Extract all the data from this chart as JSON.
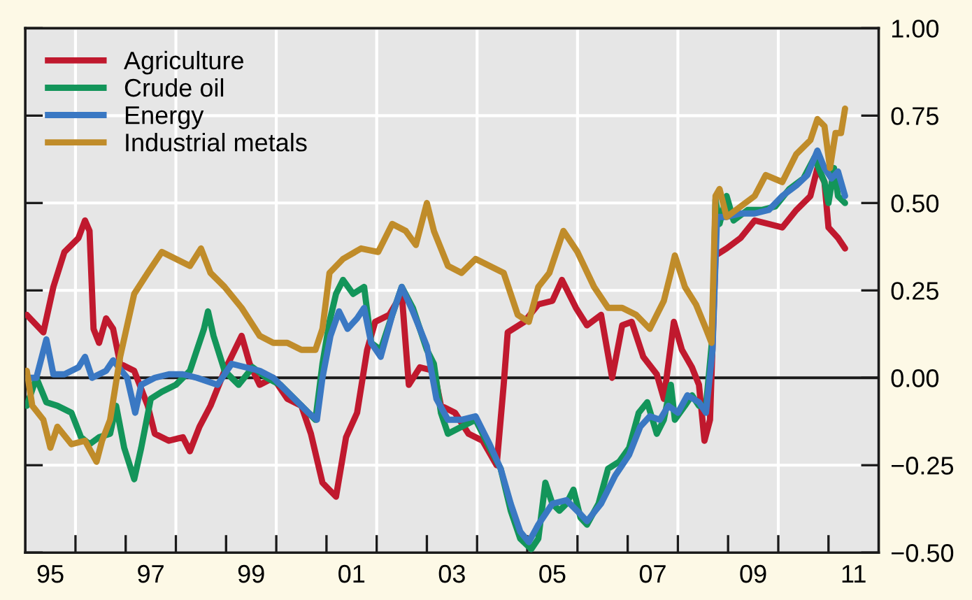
{
  "chart_data": {
    "type": "line",
    "xlim": [
      1994.5,
      2011.5
    ],
    "ylim": [
      -0.5,
      1.0
    ],
    "xticks": [
      {
        "value": 1995,
        "label": "95"
      },
      {
        "value": 1997,
        "label": "97"
      },
      {
        "value": 1999,
        "label": "99"
      },
      {
        "value": 2001,
        "label": "01"
      },
      {
        "value": 2003,
        "label": "03"
      },
      {
        "value": 2005,
        "label": "05"
      },
      {
        "value": 2007,
        "label": "07"
      },
      {
        "value": 2009,
        "label": "09"
      },
      {
        "value": 2011,
        "label": "11"
      },
      {
        "value": 1995.5,
        "label": null
      },
      {
        "value": 1996.5,
        "label": null
      },
      {
        "value": 1997.5,
        "label": null
      },
      {
        "value": 1998.5,
        "label": null
      },
      {
        "value": 1999.5,
        "label": null
      },
      {
        "value": 2000.5,
        "label": null
      },
      {
        "value": 2001.5,
        "label": null
      },
      {
        "value": 2002.5,
        "label": null
      },
      {
        "value": 2003.5,
        "label": null
      },
      {
        "value": 2004.5,
        "label": null
      },
      {
        "value": 2005.5,
        "label": null
      },
      {
        "value": 2006.5,
        "label": null
      },
      {
        "value": 2007.5,
        "label": null
      },
      {
        "value": 2008.5,
        "label": null
      },
      {
        "value": 2009.5,
        "label": null
      },
      {
        "value": 2010.5,
        "label": null
      }
    ],
    "yticks": [
      {
        "value": -0.5,
        "label": "−0.50"
      },
      {
        "value": -0.25,
        "label": "−0.25"
      },
      {
        "value": 0,
        "label": "0.00"
      },
      {
        "value": 0.25,
        "label": "0.25"
      },
      {
        "value": 0.5,
        "label": "0.50"
      },
      {
        "value": 0.75,
        "label": "0.75"
      },
      {
        "value": 1.0,
        "label": "1.00"
      }
    ],
    "grid": true,
    "legend": "top left",
    "line_style": "solid",
    "ref_lines": [
      {
        "axis": "y",
        "value": 0,
        "color": "#1a1a1a"
      }
    ],
    "series": [
      {
        "name": "Agriculture",
        "color": "#c0192e",
        "x": [
          1994.53,
          1994.86,
          1995.06,
          1995.28,
          1995.56,
          1995.69,
          1995.78,
          1995.86,
          1995.97,
          1996.11,
          1996.25,
          1996.39,
          1996.67,
          1996.94,
          1997.08,
          1997.36,
          1997.64,
          1997.78,
          1997.97,
          1998.19,
          1998.47,
          1998.81,
          1998.97,
          1999.17,
          1999.44,
          1999.72,
          2000.0,
          2000.19,
          2000.42,
          2000.69,
          2000.89,
          2001.11,
          2001.31,
          2001.47,
          2001.75,
          2002.0,
          2002.14,
          2002.36,
          2002.64,
          2002.78,
          2003.06,
          2003.33,
          2003.61,
          2003.89,
          2004.03,
          2004.11,
          2004.44,
          2004.72,
          2005.0,
          2005.19,
          2005.47,
          2005.69,
          2005.97,
          2006.19,
          2006.39,
          2006.58,
          2006.81,
          2007.08,
          2007.22,
          2007.42,
          2007.58,
          2007.78,
          2007.92,
          2008.03,
          2008.14,
          2008.25,
          2008.47,
          2008.75,
          2009.03,
          2009.31,
          2009.58,
          2009.86,
          2010.14,
          2010.28,
          2010.42,
          2010.5,
          2010.69,
          2010.83
        ],
        "values": [
          0.18,
          0.13,
          0.26,
          0.36,
          0.4,
          0.45,
          0.42,
          0.14,
          0.1,
          0.17,
          0.14,
          0.04,
          0.02,
          -0.08,
          -0.16,
          -0.18,
          -0.17,
          -0.21,
          -0.14,
          -0.08,
          0.02,
          0.12,
          0.04,
          -0.02,
          0.0,
          -0.06,
          -0.08,
          -0.16,
          -0.3,
          -0.34,
          -0.17,
          -0.1,
          0.08,
          0.16,
          0.18,
          0.24,
          -0.02,
          0.03,
          0.02,
          -0.08,
          -0.1,
          -0.16,
          -0.18,
          -0.25,
          -0.02,
          0.13,
          0.16,
          0.21,
          0.22,
          0.28,
          0.2,
          0.15,
          0.18,
          0.0,
          0.15,
          0.16,
          0.06,
          0.01,
          -0.06,
          0.16,
          0.08,
          0.03,
          -0.02,
          -0.18,
          -0.12,
          0.35,
          0.37,
          0.4,
          0.45,
          0.44,
          0.43,
          0.48,
          0.52,
          0.6,
          0.56,
          0.43,
          0.4,
          0.37
        ]
      },
      {
        "name": "Crude oil",
        "color": "#13955a",
        "x": [
          1994.53,
          1994.72,
          1994.92,
          1995.14,
          1995.42,
          1995.61,
          1995.78,
          1995.97,
          1996.19,
          1996.31,
          1996.47,
          1996.67,
          1996.81,
          1997.0,
          1997.22,
          1997.5,
          1997.78,
          1998.06,
          1998.14,
          1998.25,
          1998.47,
          1998.75,
          1999.03,
          1999.31,
          1999.58,
          1999.86,
          2000.28,
          2000.42,
          2000.56,
          2000.69,
          2000.83,
          2001.03,
          2001.25,
          2001.39,
          2001.58,
          2001.81,
          2002.0,
          2002.22,
          2002.36,
          2002.5,
          2002.64,
          2002.78,
          2002.92,
          2003.19,
          2003.47,
          2003.75,
          2003.97,
          2004.17,
          2004.36,
          2004.58,
          2004.72,
          2004.86,
          2005.0,
          2005.14,
          2005.28,
          2005.42,
          2005.56,
          2005.69,
          2005.92,
          2006.11,
          2006.33,
          2006.53,
          2006.72,
          2006.89,
          2007.08,
          2007.22,
          2007.36,
          2007.44,
          2007.64,
          2007.78,
          2007.92,
          2008.06,
          2008.19,
          2008.25,
          2008.33,
          2008.47,
          2008.61,
          2008.89,
          2009.17,
          2009.44,
          2009.72,
          2010.0,
          2010.22,
          2010.42,
          2010.5,
          2010.61,
          2010.69,
          2010.83
        ],
        "values": [
          -0.08,
          0.0,
          -0.07,
          -0.08,
          -0.1,
          -0.17,
          -0.19,
          -0.17,
          -0.16,
          -0.08,
          -0.2,
          -0.29,
          -0.2,
          -0.06,
          -0.04,
          -0.02,
          0.02,
          0.14,
          0.19,
          0.12,
          0.02,
          -0.02,
          0.03,
          0.0,
          -0.02,
          -0.06,
          -0.12,
          0.04,
          0.16,
          0.24,
          0.28,
          0.24,
          0.26,
          0.1,
          0.08,
          0.18,
          0.26,
          0.2,
          0.14,
          0.08,
          0.04,
          -0.1,
          -0.16,
          -0.14,
          -0.12,
          -0.2,
          -0.26,
          -0.38,
          -0.46,
          -0.49,
          -0.46,
          -0.3,
          -0.36,
          -0.38,
          -0.36,
          -0.32,
          -0.4,
          -0.42,
          -0.36,
          -0.26,
          -0.24,
          -0.2,
          -0.1,
          -0.07,
          -0.16,
          -0.12,
          -0.02,
          -0.12,
          -0.08,
          -0.05,
          -0.08,
          -0.08,
          0.12,
          0.51,
          0.44,
          0.52,
          0.45,
          0.48,
          0.48,
          0.49,
          0.54,
          0.57,
          0.63,
          0.56,
          0.5,
          0.6,
          0.52,
          0.5
        ]
      },
      {
        "name": "Energy",
        "color": "#3a78c3",
        "x": [
          1994.53,
          1994.72,
          1994.92,
          1995.06,
          1995.28,
          1995.56,
          1995.69,
          1995.83,
          1996.11,
          1996.25,
          1996.53,
          1996.69,
          1996.81,
          1997.08,
          1997.36,
          1997.64,
          1997.92,
          1998.33,
          1998.61,
          1998.89,
          1999.17,
          1999.44,
          1999.72,
          2000.14,
          2000.31,
          2000.42,
          2000.58,
          2000.75,
          2000.92,
          2001.11,
          2001.25,
          2001.39,
          2001.58,
          2001.81,
          2002.0,
          2002.22,
          2002.5,
          2002.69,
          2002.92,
          2003.19,
          2003.47,
          2003.75,
          2003.97,
          2004.17,
          2004.36,
          2004.53,
          2004.72,
          2005.0,
          2005.28,
          2005.56,
          2005.69,
          2005.97,
          2006.25,
          2006.53,
          2006.75,
          2006.94,
          2007.14,
          2007.31,
          2007.5,
          2007.69,
          2007.92,
          2008.06,
          2008.19,
          2008.28,
          2008.47,
          2008.75,
          2009.03,
          2009.31,
          2009.58,
          2009.86,
          2010.08,
          2010.28,
          2010.42,
          2010.56,
          2010.69,
          2010.83
        ],
        "values": [
          0.0,
          0.0,
          0.11,
          0.01,
          0.01,
          0.03,
          0.06,
          0.0,
          0.02,
          0.05,
          0.0,
          -0.1,
          -0.02,
          0.0,
          0.01,
          0.01,
          0.0,
          -0.02,
          0.04,
          0.03,
          0.02,
          0.0,
          -0.04,
          -0.1,
          -0.12,
          0.0,
          0.12,
          0.19,
          0.14,
          0.17,
          0.2,
          0.1,
          0.06,
          0.18,
          0.26,
          0.19,
          0.09,
          -0.06,
          -0.12,
          -0.12,
          -0.11,
          -0.19,
          -0.26,
          -0.36,
          -0.44,
          -0.47,
          -0.42,
          -0.36,
          -0.35,
          -0.39,
          -0.41,
          -0.36,
          -0.28,
          -0.22,
          -0.14,
          -0.11,
          -0.12,
          -0.08,
          -0.1,
          -0.05,
          -0.07,
          -0.1,
          0.08,
          0.46,
          0.46,
          0.47,
          0.47,
          0.48,
          0.52,
          0.55,
          0.58,
          0.65,
          0.6,
          0.57,
          0.59,
          0.52
        ]
      },
      {
        "name": "Industrial metals",
        "color": "#c08c2a",
        "x": [
          1994.53,
          1994.64,
          1994.86,
          1995.0,
          1995.14,
          1995.42,
          1995.69,
          1995.92,
          1996.03,
          1996.19,
          1996.39,
          1996.67,
          1996.94,
          1997.22,
          1997.5,
          1997.78,
          1998.0,
          1998.19,
          1998.47,
          1998.81,
          1999.17,
          1999.44,
          1999.72,
          2000.0,
          2000.28,
          2000.42,
          2000.56,
          2000.83,
          2001.19,
          2001.53,
          2001.81,
          2002.08,
          2002.28,
          2002.5,
          2002.64,
          2002.92,
          2003.19,
          2003.47,
          2003.75,
          2004.03,
          2004.31,
          2004.53,
          2004.72,
          2004.94,
          2005.22,
          2005.5,
          2005.83,
          2006.11,
          2006.39,
          2006.67,
          2006.94,
          2007.22,
          2007.36,
          2007.44,
          2007.64,
          2007.86,
          2008.06,
          2008.17,
          2008.25,
          2008.33,
          2008.47,
          2008.75,
          2009.03,
          2009.25,
          2009.58,
          2009.86,
          2010.14,
          2010.28,
          2010.42,
          2010.53,
          2010.64,
          2010.75,
          2010.83
        ],
        "values": [
          0.02,
          -0.08,
          -0.12,
          -0.2,
          -0.14,
          -0.19,
          -0.18,
          -0.24,
          -0.18,
          -0.12,
          0.06,
          0.24,
          0.3,
          0.36,
          0.34,
          0.32,
          0.37,
          0.3,
          0.26,
          0.2,
          0.12,
          0.1,
          0.1,
          0.08,
          0.08,
          0.14,
          0.3,
          0.34,
          0.37,
          0.36,
          0.44,
          0.42,
          0.38,
          0.5,
          0.42,
          0.32,
          0.3,
          0.34,
          0.32,
          0.3,
          0.18,
          0.16,
          0.26,
          0.3,
          0.42,
          0.36,
          0.26,
          0.2,
          0.2,
          0.18,
          0.14,
          0.22,
          0.3,
          0.35,
          0.26,
          0.21,
          0.14,
          0.1,
          0.52,
          0.54,
          0.46,
          0.49,
          0.52,
          0.58,
          0.56,
          0.64,
          0.68,
          0.74,
          0.72,
          0.6,
          0.7,
          0.7,
          0.77
        ]
      }
    ]
  }
}
